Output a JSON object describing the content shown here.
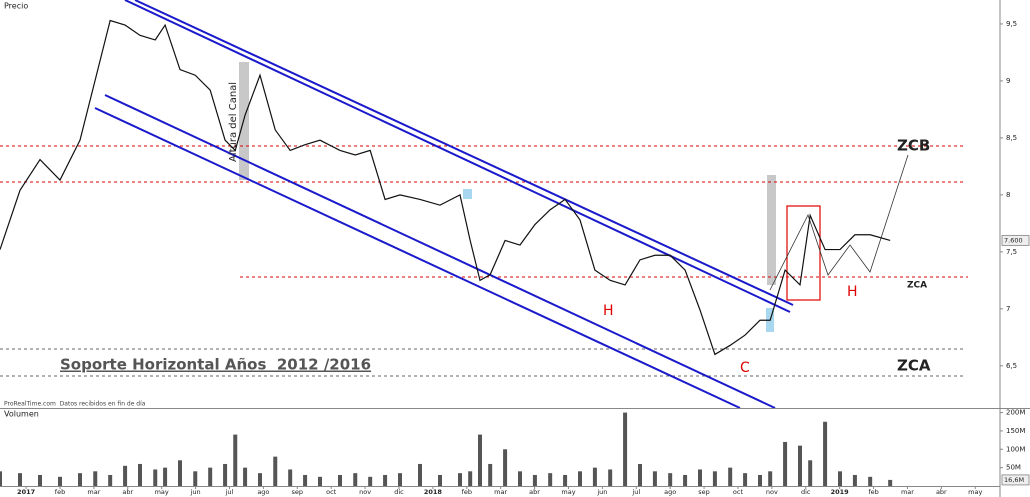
{
  "chart_data": [
    {
      "type": "line",
      "title": "Precio",
      "color": "#111111",
      "x": [
        -0.77,
        -0.18,
        0.41,
        1.0,
        1.59,
        2.04,
        2.48,
        2.92,
        3.36,
        3.81,
        4.1,
        4.54,
        4.99,
        5.43,
        5.87,
        6.17,
        6.46,
        6.9,
        7.35,
        7.79,
        8.23,
        8.67,
        9.26,
        9.71,
        10.15,
        10.59,
        11.03,
        11.62,
        12.21,
        12.8,
        13.1,
        13.39,
        13.69,
        14.13,
        14.57,
        15.01,
        15.46,
        15.9,
        16.34,
        16.78,
        17.23,
        17.67,
        18.11,
        18.55,
        19.0,
        19.44,
        19.88,
        20.32,
        20.77,
        21.21,
        21.65,
        21.95,
        22.39,
        22.83,
        23.13,
        23.57,
        24.01,
        24.45,
        24.9,
        25.49
      ],
      "values": [
        7.52,
        8.04,
        8.31,
        8.13,
        8.48,
        9.01,
        9.53,
        9.49,
        9.4,
        9.36,
        9.49,
        9.1,
        9.05,
        8.92,
        8.48,
        8.39,
        8.7,
        9.05,
        8.57,
        8.39,
        8.44,
        8.48,
        8.39,
        8.35,
        8.39,
        7.96,
        8.0,
        7.96,
        7.91,
        8.0,
        7.6,
        7.25,
        7.3,
        7.6,
        7.56,
        7.74,
        7.87,
        7.96,
        7.78,
        7.34,
        7.25,
        7.21,
        7.43,
        7.47,
        7.47,
        7.34,
        6.99,
        6.6,
        6.68,
        6.77,
        6.9,
        6.9,
        7.34,
        7.21,
        7.82,
        7.52,
        7.52,
        7.65,
        7.65,
        7.6
      ],
      "last_value_label": "7.600",
      "xlim": [
        -0.77,
        28.73
      ],
      "ylim": [
        6.13,
        9.71
      ],
      "yticks": [
        {
          "value": 9.5,
          "label": "9,5"
        },
        9,
        {
          "value": 8.5,
          "label": "8,5"
        },
        8,
        {
          "value": 7.5,
          "label": "7,5"
        },
        7,
        {
          "value": 6.5,
          "label": "6,5"
        }
      ]
    },
    {
      "type": "bar",
      "title": "Volumen",
      "color": "#555555",
      "x": [
        -0.77,
        -0.18,
        0.41,
        1.0,
        1.59,
        2.04,
        2.48,
        2.92,
        3.36,
        3.81,
        4.1,
        4.54,
        4.99,
        5.43,
        5.87,
        6.17,
        6.46,
        6.9,
        7.35,
        7.79,
        8.23,
        8.67,
        9.26,
        9.71,
        10.15,
        10.59,
        11.03,
        11.62,
        12.21,
        12.8,
        13.1,
        13.39,
        13.69,
        14.13,
        14.57,
        15.01,
        15.46,
        15.9,
        16.34,
        16.78,
        17.23,
        17.67,
        18.11,
        18.55,
        19.0,
        19.44,
        19.88,
        20.32,
        20.77,
        21.21,
        21.65,
        21.95,
        22.39,
        22.83,
        23.13,
        23.57,
        24.01,
        24.45,
        24.9,
        25.49
      ],
      "values": [
        40,
        35,
        30,
        25,
        35,
        40,
        30,
        55,
        60,
        45,
        50,
        70,
        40,
        50,
        60,
        140,
        50,
        35,
        80,
        45,
        30,
        25,
        30,
        35,
        25,
        30,
        35,
        60,
        30,
        35,
        40,
        140,
        60,
        100,
        40,
        30,
        35,
        30,
        40,
        50,
        45,
        200,
        60,
        40,
        35,
        30,
        45,
        40,
        50,
        35,
        30,
        40,
        120,
        110,
        70,
        175,
        40,
        30,
        25,
        16.6
      ],
      "last_value_label": "16,6M",
      "xlim": [
        -0.77,
        28.73
      ],
      "ylim": [
        0,
        207
      ],
      "yticks": [
        {
          "value": 200,
          "label": "200M"
        },
        {
          "value": 150,
          "label": "150M"
        },
        {
          "value": 100,
          "label": "100M"
        },
        {
          "value": 50,
          "label": "50M"
        }
      ],
      "xticks": [
        {
          "value": 0,
          "label": "2017"
        },
        {
          "value": 1,
          "label": "feb"
        },
        {
          "value": 2,
          "label": "mar"
        },
        {
          "value": 3,
          "label": "abr"
        },
        {
          "value": 4,
          "label": "may"
        },
        {
          "value": 5,
          "label": "jun"
        },
        {
          "value": 6,
          "label": "jul"
        },
        {
          "value": 7,
          "label": "ago"
        },
        {
          "value": 8,
          "label": "sep"
        },
        {
          "value": 9,
          "label": "oct"
        },
        {
          "value": 10,
          "label": "nov"
        },
        {
          "value": 11,
          "label": "dic"
        },
        {
          "value": 12,
          "label": "2018"
        },
        {
          "value": 13,
          "label": "feb"
        },
        {
          "value": 14,
          "label": "mar"
        },
        {
          "value": 15,
          "label": "abr"
        },
        {
          "value": 16,
          "label": "may"
        },
        {
          "value": 17,
          "label": "jun"
        },
        {
          "value": 18,
          "label": "jul"
        },
        {
          "value": 19,
          "label": "ago"
        },
        {
          "value": 20,
          "label": "sep"
        },
        {
          "value": 21,
          "label": "oct"
        },
        {
          "value": 22,
          "label": "nov"
        },
        {
          "value": 23,
          "label": "dic"
        },
        {
          "value": 24,
          "label": "2019"
        },
        {
          "value": 25,
          "label": "feb"
        },
        {
          "value": 26,
          "label": "mar"
        },
        {
          "value": 27,
          "label": "abr"
        },
        {
          "value": 28,
          "label": "may"
        }
      ]
    }
  ],
  "source_note": "ProRealTime.com  Datos recibidos en fin de día",
  "annotations": {
    "channel_height": "Altura del Canal",
    "support": "Soporte Horizontal Años  2012 /2016",
    "zcb": "ZCB",
    "zca_small": "ZCA",
    "zca": "ZCA",
    "h1": "H",
    "h2": "H",
    "c": "C"
  }
}
